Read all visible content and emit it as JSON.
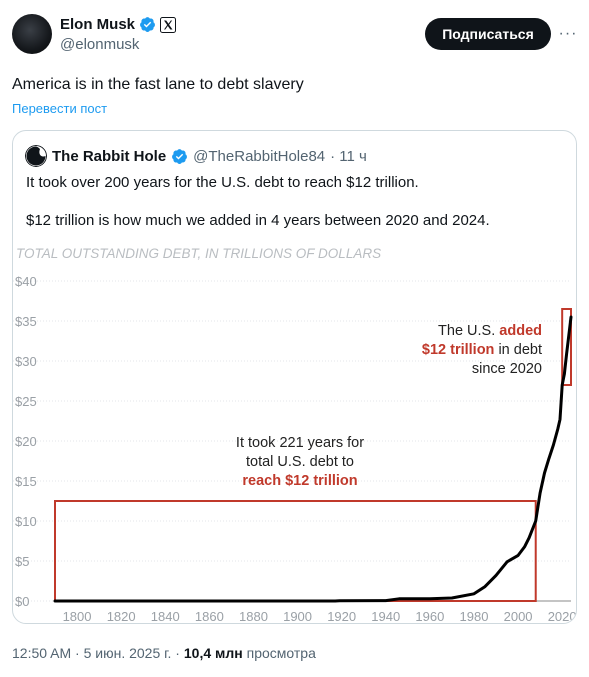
{
  "author": {
    "name": "Elon Musk",
    "handle": "@elonmusk"
  },
  "buttons": {
    "subscribe": "Подписаться",
    "more": "···"
  },
  "post": {
    "text": "America is in the fast lane to debt slavery",
    "translate": "Перевести пост"
  },
  "quote": {
    "name": "The Rabbit Hole",
    "handle": "@TheRabbitHole84",
    "time": "· 11 ч",
    "line1": "It took over 200 years for the U.S. debt to reach $12 trillion.",
    "line2": "$12 trillion is how much we added in 4 years between 2020 and 2024."
  },
  "meta": {
    "time": "12:50 AM · 5 июн. 2025 г. ·",
    "views": "10,4 млн",
    "views_label": "просмотра"
  },
  "colors": {
    "verified": "#1d9bf0",
    "accent_red": "#c0392b",
    "line": "#000000"
  },
  "chart_data": {
    "type": "line",
    "title": "TOTAL OUTSTANDING DEBT, IN TRILLIONS OF DOLLARS",
    "xlabel": "",
    "ylabel": "",
    "xlim": [
      1790,
      2024
    ],
    "ylim": [
      0,
      40
    ],
    "x_ticks": [
      "1800",
      "1820",
      "1840",
      "1860",
      "1880",
      "1900",
      "1920",
      "1940",
      "1960",
      "1980",
      "2000",
      "2020"
    ],
    "y_ticks": [
      "$0",
      "$5",
      "$10",
      "$15",
      "$20",
      "$25",
      "$30",
      "$35",
      "$40"
    ],
    "x_tick_values": [
      1800,
      1820,
      1840,
      1860,
      1880,
      1900,
      1920,
      1940,
      1960,
      1980,
      2000,
      2020
    ],
    "y_tick_values": [
      0,
      5,
      10,
      15,
      20,
      25,
      30,
      35,
      40
    ],
    "grid": true,
    "series": [
      {
        "x": [
          1790,
          1860,
          1917,
          1919,
          1940,
          1946,
          1960,
          1970,
          1980,
          1985,
          1990,
          1995,
          2000,
          2003,
          2005,
          2008,
          2010,
          2012,
          2014,
          2016,
          2018,
          2019,
          2020,
          2021,
          2022,
          2023,
          2024
        ],
        "y": [
          0.0,
          0.0,
          0.0,
          0.03,
          0.05,
          0.27,
          0.29,
          0.38,
          0.9,
          1.8,
          3.2,
          4.9,
          5.7,
          6.8,
          7.9,
          10.0,
          13.5,
          16.0,
          17.8,
          19.5,
          21.5,
          22.7,
          27.0,
          28.4,
          30.9,
          33.2,
          35.5
        ]
      }
    ],
    "annotations": {
      "left_text_line1": "It took 221 years for",
      "left_text_line2": "total U.S. debt to",
      "left_text_line3": "reach $12 trillion",
      "right_text_line1_a": "The U.S.",
      "right_text_line1_b": "added",
      "right_text_line2_a": "$12 trillion",
      "right_text_line2_b": "in debt",
      "right_text_line3": "since 2020"
    },
    "highlight_boxes": [
      {
        "x_from": 1790,
        "x_to": 2008,
        "y_from": 0,
        "y_to": 12.5
      },
      {
        "x_from": 2020,
        "x_to": 2024,
        "y_from": 27,
        "y_to": 36.5
      }
    ]
  }
}
